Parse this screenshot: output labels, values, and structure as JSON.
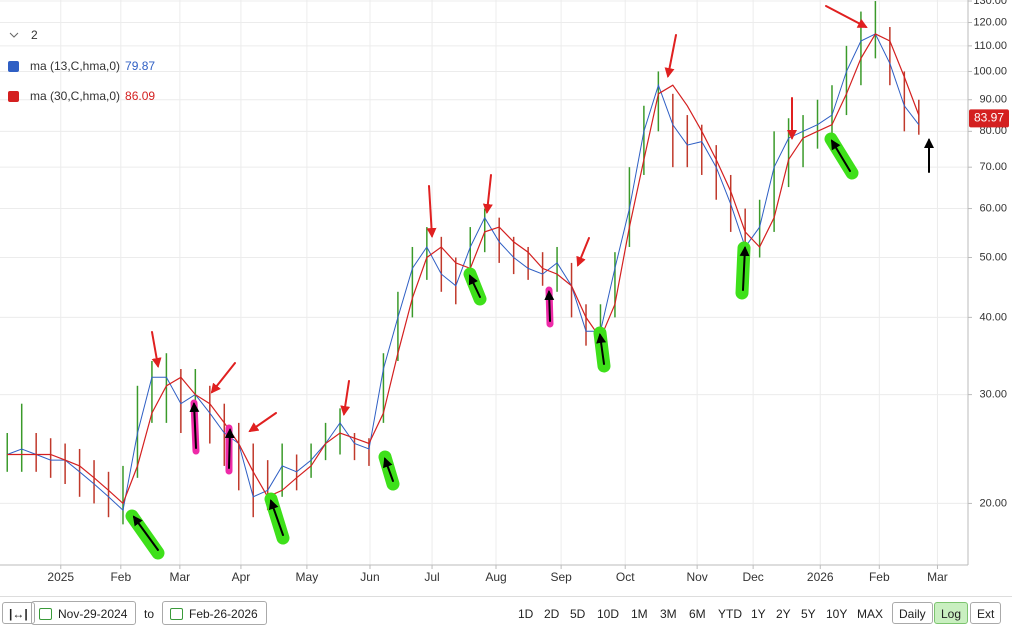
{
  "chart_data": {
    "type": "ohlc",
    "log": true,
    "grid": true,
    "legend_group": "2",
    "categories": [
      null,
      null,
      null,
      null,
      null,
      null,
      null,
      null,
      null,
      null,
      null,
      null,
      null,
      null,
      null,
      null,
      null,
      null,
      null,
      null,
      null,
      null,
      null,
      null,
      null,
      null,
      null,
      null,
      null,
      null,
      null,
      null,
      null,
      null,
      null,
      null,
      null,
      null,
      null,
      null,
      null,
      null,
      null,
      null,
      null,
      null,
      null,
      null,
      null,
      null,
      null,
      null,
      null,
      null,
      null,
      null,
      null,
      null,
      null,
      null,
      null,
      null,
      null,
      null
    ],
    "price": {
      "high": [
        26,
        29,
        26,
        25.5,
        25,
        24.5,
        23.5,
        22.5,
        23,
        31,
        34,
        35,
        33,
        33,
        31,
        29,
        27,
        25,
        23.5,
        25,
        24,
        25,
        27,
        28.5,
        26,
        25.5,
        35,
        44,
        52,
        56,
        54,
        50,
        56,
        60,
        58,
        54,
        52,
        51,
        52,
        49,
        42,
        42,
        51,
        70,
        88,
        100,
        92,
        85,
        82,
        76,
        68,
        60,
        62,
        80,
        84,
        85,
        90,
        95,
        110,
        125,
        130,
        118,
        100,
        90
      ],
      "low": [
        22.5,
        22.5,
        22.5,
        22,
        21.5,
        20.5,
        20,
        19,
        18.5,
        22,
        27,
        27,
        26,
        26,
        25,
        23,
        21,
        19,
        19.5,
        20.5,
        21,
        22,
        23.5,
        24,
        23.5,
        23,
        27,
        34,
        40,
        46,
        44,
        42,
        46,
        51,
        49,
        47,
        46,
        45,
        44,
        40,
        36,
        36,
        40,
        52,
        68,
        80,
        70,
        70,
        68,
        62,
        55,
        48,
        50,
        55,
        65,
        70,
        75,
        78,
        85,
        95,
        105,
        95,
        80,
        79
      ],
      "up_color": "#3a9a2a",
      "down_color": "#c0392b",
      "last": 83.97
    },
    "series": [
      {
        "name": "ma (13,C,hma,0)",
        "color": "#2f5fc4",
        "last": 79.87,
        "values": [
          24,
          24.5,
          24,
          23.5,
          23.5,
          22.5,
          21.5,
          20.5,
          19.5,
          26,
          32,
          32,
          29,
          30,
          28,
          26,
          25,
          20.5,
          21,
          23,
          22.5,
          23.5,
          25,
          27,
          25,
          24.5,
          33,
          40,
          48,
          52,
          47,
          45,
          52,
          58,
          53,
          50,
          48,
          47,
          49,
          45,
          38,
          38,
          48,
          60,
          80,
          95,
          82,
          76,
          77,
          70,
          61,
          52,
          56,
          70,
          78,
          80,
          82,
          85,
          100,
          112,
          115,
          103,
          88,
          82
        ]
      },
      {
        "name": "ma (30,C,hma,0)",
        "color": "#d42020",
        "last": 86.09,
        "values": [
          24,
          24,
          24,
          24,
          23.5,
          23,
          22,
          21,
          20,
          23,
          28,
          31,
          32,
          30,
          29,
          27,
          25,
          22.5,
          20.5,
          21,
          22,
          23,
          25,
          26,
          25.5,
          25,
          28,
          35,
          43,
          50,
          52,
          49,
          48,
          55,
          56,
          53,
          51,
          48,
          47,
          45,
          40,
          37,
          42,
          56,
          72,
          92,
          95,
          88,
          80,
          72,
          64,
          55,
          52,
          58,
          72,
          78,
          80,
          82,
          92,
          105,
          115,
          112,
          98,
          85
        ]
      }
    ],
    "xlim": [
      -0.5,
      66.4
    ],
    "xticks": [
      {
        "value": 3.7,
        "label": "2025"
      },
      {
        "value": 7.85,
        "label": "Feb"
      },
      {
        "value": 11.93,
        "label": "Mar"
      },
      {
        "value": 16.15,
        "label": "Apr"
      },
      {
        "value": 20.71,
        "label": "May"
      },
      {
        "value": 25.07,
        "label": "Jun"
      },
      {
        "value": 29.36,
        "label": "Jul"
      },
      {
        "value": 33.78,
        "label": "Aug"
      },
      {
        "value": 38.28,
        "label": "Sep"
      },
      {
        "value": 42.71,
        "label": "Oct"
      },
      {
        "value": 47.68,
        "label": "Nov"
      },
      {
        "value": 51.55,
        "label": "Dec"
      },
      {
        "value": 56.19,
        "label": "2026"
      },
      {
        "value": 60.27,
        "label": "Feb"
      },
      {
        "value": 64.29,
        "label": "Mar"
      }
    ],
    "ylim": [
      15.9,
      130.5
    ],
    "yticks": [
      {
        "value": 20,
        "label": "20.00"
      },
      {
        "value": 30,
        "label": "30.00"
      },
      {
        "value": 40,
        "label": "40.00"
      },
      {
        "value": 50,
        "label": "50.00"
      },
      {
        "value": 60,
        "label": "60.00"
      },
      {
        "value": 70,
        "label": "70.00"
      },
      {
        "value": 80,
        "label": "80.00"
      },
      {
        "value": 90,
        "label": "90.00"
      },
      {
        "value": 100,
        "label": "100.00"
      },
      {
        "value": 110,
        "label": "110.00"
      },
      {
        "value": 120,
        "label": "120.00"
      },
      {
        "value": 130,
        "label": "130.00"
      }
    ]
  },
  "toolbar": {
    "date_from": "Nov-29-2024",
    "to": "to",
    "date_to": "Feb-26-2026",
    "ranges": [
      "1D",
      "2D",
      "5D",
      "10D",
      "1M",
      "3M",
      "6M",
      "YTD",
      "1Y",
      "2Y",
      "5Y",
      "10Y",
      "MAX"
    ],
    "daily": "Daily",
    "log": "Log",
    "ext": "Ext"
  }
}
